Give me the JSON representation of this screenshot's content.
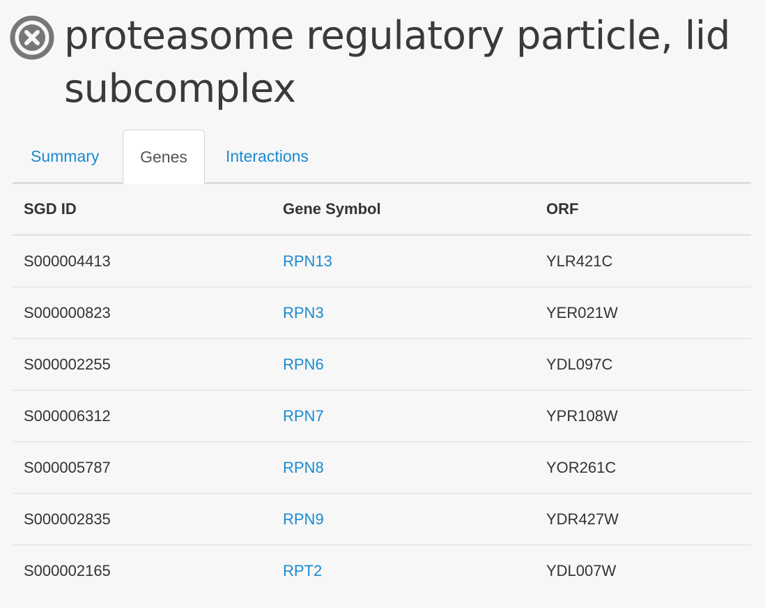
{
  "header": {
    "title": "proteasome regulatory particle, lid subcomplex",
    "close_icon": "close-circle-icon",
    "icon_color": "#777777"
  },
  "tabs": [
    {
      "label": "Summary",
      "active": false
    },
    {
      "label": "Genes",
      "active": true
    },
    {
      "label": "Interactions",
      "active": false
    }
  ],
  "table": {
    "columns": [
      "SGD ID",
      "Gene Symbol",
      "ORF"
    ],
    "rows": [
      {
        "sgd_id": "S000004413",
        "gene_symbol": "RPN13",
        "orf": "YLR421C"
      },
      {
        "sgd_id": "S000000823",
        "gene_symbol": "RPN3",
        "orf": "YER021W"
      },
      {
        "sgd_id": "S000002255",
        "gene_symbol": "RPN6",
        "orf": "YDL097C"
      },
      {
        "sgd_id": "S000006312",
        "gene_symbol": "RPN7",
        "orf": "YPR108W"
      },
      {
        "sgd_id": "S000005787",
        "gene_symbol": "RPN8",
        "orf": "YOR261C"
      },
      {
        "sgd_id": "S000002835",
        "gene_symbol": "RPN9",
        "orf": "YDR427W"
      },
      {
        "sgd_id": "S000002165",
        "gene_symbol": "RPT2",
        "orf": "YDL007W"
      }
    ]
  },
  "colors": {
    "link": "#1a8bd0",
    "text": "#333333",
    "background": "#f7f7f7",
    "border": "#dddddd"
  }
}
